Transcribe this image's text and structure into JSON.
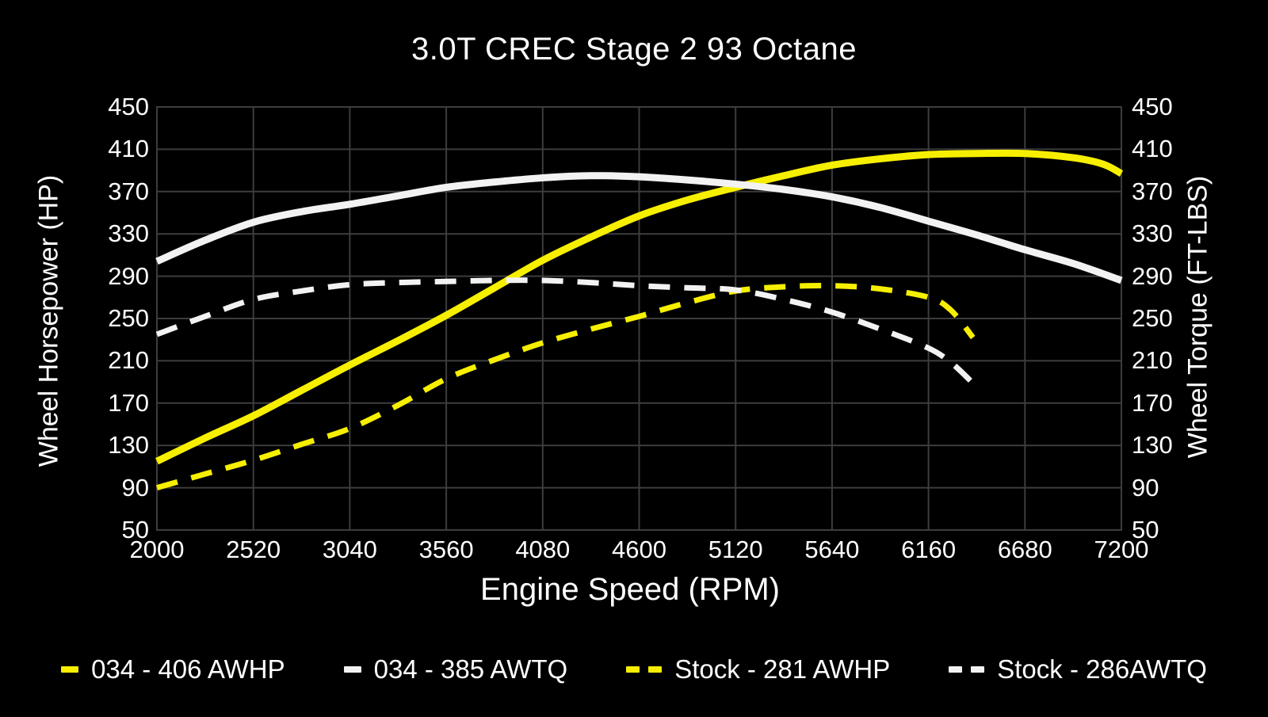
{
  "title": "3.0T CREC Stage 2 93 Octane",
  "colors": {
    "background": "#000000",
    "grid": "#3d3d3d",
    "text": "#ffffff",
    "accent_yellow": "#f6ef00",
    "accent_white": "#f2f2f2"
  },
  "axes": {
    "x": {
      "label": "Engine Speed (RPM)",
      "min": 2000,
      "max": 7200,
      "ticks": [
        2000,
        2520,
        3040,
        3560,
        4080,
        4600,
        5120,
        5640,
        6160,
        6680,
        7200
      ]
    },
    "y_left": {
      "label": "Wheel Horsepower (HP)",
      "min": 50,
      "max": 450,
      "ticks": [
        50,
        90,
        130,
        170,
        210,
        250,
        290,
        330,
        370,
        410,
        450
      ]
    },
    "y_right": {
      "label": "Wheel Torque (FT-LBS)",
      "min": 50,
      "max": 450,
      "ticks": [
        50,
        90,
        130,
        170,
        210,
        250,
        290,
        330,
        370,
        410,
        450
      ]
    }
  },
  "legend": [
    {
      "label": "034 - 406 AWHP",
      "color": "#f6ef00",
      "style": "solid"
    },
    {
      "label": "034 - 385 AWTQ",
      "color": "#f2f2f2",
      "style": "solid"
    },
    {
      "label": "Stock - 281 AWHP",
      "color": "#f6ef00",
      "style": "dashed"
    },
    {
      "label": "Stock - 286AWTQ",
      "color": "#f2f2f2",
      "style": "dashed"
    }
  ],
  "chart_data": {
    "type": "line",
    "title": "3.0T CREC Stage 2 93 Octane",
    "xlabel": "Engine Speed (RPM)",
    "ylabel_left": "Wheel Horsepower (HP)",
    "ylabel_right": "Wheel Torque (FT-LBS)",
    "xlim": [
      2000,
      7200
    ],
    "ylim": [
      50,
      450
    ],
    "x_ticks": [
      2000,
      2520,
      3040,
      3560,
      4080,
      4600,
      5120,
      5640,
      6160,
      6680,
      7200
    ],
    "y_ticks": [
      50,
      90,
      130,
      170,
      210,
      250,
      290,
      330,
      370,
      410,
      450
    ],
    "grid": true,
    "legend_position": "bottom",
    "series": [
      {
        "name": "034 - 406 AWHP",
        "axis": "left",
        "unit": "HP",
        "color": "#f6ef00",
        "style": "solid",
        "peak": 406,
        "points": [
          [
            2000,
            115
          ],
          [
            2260,
            137
          ],
          [
            2520,
            158
          ],
          [
            2780,
            182
          ],
          [
            3040,
            206
          ],
          [
            3300,
            229
          ],
          [
            3560,
            253
          ],
          [
            3820,
            279
          ],
          [
            4080,
            305
          ],
          [
            4340,
            327
          ],
          [
            4600,
            347
          ],
          [
            4860,
            362
          ],
          [
            5120,
            374
          ],
          [
            5380,
            385
          ],
          [
            5640,
            395
          ],
          [
            5900,
            401
          ],
          [
            6160,
            405
          ],
          [
            6420,
            406
          ],
          [
            6680,
            406
          ],
          [
            6940,
            402
          ],
          [
            7100,
            396
          ],
          [
            7200,
            387
          ]
        ]
      },
      {
        "name": "034 - 385 AWTQ",
        "axis": "right",
        "unit": "FT-LBS",
        "color": "#f2f2f2",
        "style": "solid",
        "peak": 385,
        "points": [
          [
            2000,
            304
          ],
          [
            2260,
            324
          ],
          [
            2520,
            341
          ],
          [
            2780,
            351
          ],
          [
            3040,
            358
          ],
          [
            3300,
            366
          ],
          [
            3560,
            374
          ],
          [
            3820,
            379
          ],
          [
            4080,
            383
          ],
          [
            4340,
            385
          ],
          [
            4600,
            384
          ],
          [
            4860,
            381
          ],
          [
            5120,
            377
          ],
          [
            5380,
            372
          ],
          [
            5640,
            365
          ],
          [
            5900,
            355
          ],
          [
            6160,
            342
          ],
          [
            6420,
            329
          ],
          [
            6680,
            315
          ],
          [
            6940,
            302
          ],
          [
            7200,
            286
          ]
        ]
      },
      {
        "name": "Stock - 281 AWHP",
        "axis": "left",
        "unit": "HP",
        "color": "#f6ef00",
        "style": "dashed",
        "peak": 281,
        "points": [
          [
            2000,
            90
          ],
          [
            2260,
            103
          ],
          [
            2520,
            116
          ],
          [
            2780,
            131
          ],
          [
            3040,
            146
          ],
          [
            3300,
            168
          ],
          [
            3560,
            193
          ],
          [
            3820,
            211
          ],
          [
            4080,
            227
          ],
          [
            4340,
            240
          ],
          [
            4600,
            252
          ],
          [
            4860,
            265
          ],
          [
            5120,
            276
          ],
          [
            5380,
            280
          ],
          [
            5640,
            281
          ],
          [
            5900,
            278
          ],
          [
            6160,
            270
          ],
          [
            6280,
            258
          ],
          [
            6400,
            232
          ]
        ]
      },
      {
        "name": "Stock - 286AWTQ",
        "axis": "right",
        "unit": "FT-LBS",
        "color": "#f2f2f2",
        "style": "dashed",
        "peak": 286,
        "points": [
          [
            2000,
            235
          ],
          [
            2260,
            252
          ],
          [
            2520,
            268
          ],
          [
            2780,
            276
          ],
          [
            3040,
            282
          ],
          [
            3300,
            284
          ],
          [
            3560,
            285
          ],
          [
            3820,
            286
          ],
          [
            4080,
            286
          ],
          [
            4340,
            284
          ],
          [
            4600,
            281
          ],
          [
            4860,
            279
          ],
          [
            5120,
            277
          ],
          [
            5380,
            268
          ],
          [
            5640,
            256
          ],
          [
            5900,
            240
          ],
          [
            6160,
            222
          ],
          [
            6290,
            207
          ],
          [
            6410,
            187
          ]
        ]
      }
    ]
  }
}
